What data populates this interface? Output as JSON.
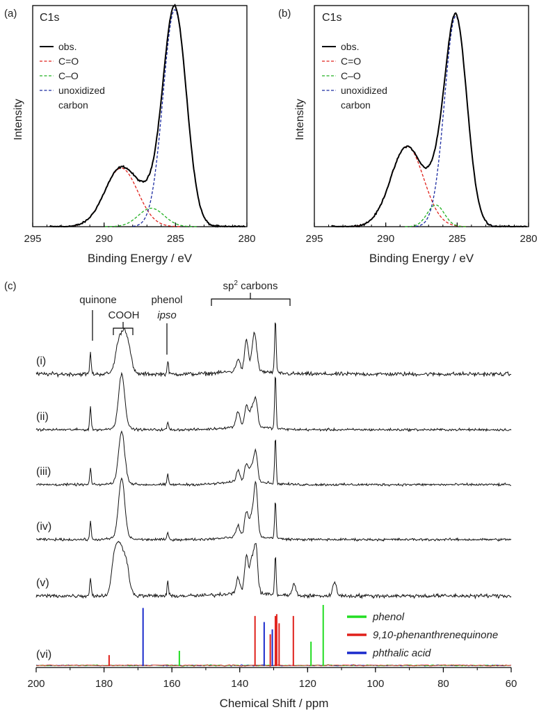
{
  "colors": {
    "obs": "#000000",
    "co_double": "#e0201a",
    "co_single": "#20b020",
    "unox": "#1a2aa0",
    "phenol": "#22dd22",
    "quinone": "#e0201a",
    "phthalic": "#1a2acc"
  },
  "chart_data": [
    {
      "type": "line",
      "panel_label": "(a)",
      "title": "C1s",
      "xlabel": "Binding Energy / eV",
      "ylabel": "Intensity",
      "xlim": [
        295,
        280
      ],
      "xticks": [
        "295",
        "290",
        "285",
        "280"
      ],
      "legend": [
        {
          "label": "obs.",
          "style": "solid"
        },
        {
          "label": "C=O",
          "style": "dashed"
        },
        {
          "label": "C–O",
          "style": "dashed"
        },
        {
          "label": "unoxidized",
          "style": "dashed"
        },
        {
          "label": "carbon",
          "style": "none"
        }
      ],
      "components": [
        {
          "name": "C=O",
          "center": 288.8,
          "height": 0.27,
          "width": 1.15
        },
        {
          "name": "C–O",
          "center": 286.7,
          "height": 0.085,
          "width": 0.9
        },
        {
          "name": "unoxidized carbon",
          "center": 285.05,
          "height": 1.0,
          "width": 0.82
        }
      ]
    },
    {
      "type": "line",
      "panel_label": "(b)",
      "title": "C1s",
      "xlabel": "Binding Energy / eV",
      "ylabel": "Intensity",
      "xlim": [
        295,
        280
      ],
      "xticks": [
        "295",
        "290",
        "285",
        "280"
      ],
      "legend": [
        {
          "label": "obs.",
          "style": "solid"
        },
        {
          "label": "C=O",
          "style": "dashed"
        },
        {
          "label": "C–O",
          "style": "dashed"
        },
        {
          "label": "unoxidized",
          "style": "dashed"
        },
        {
          "label": "carbon",
          "style": "none"
        }
      ],
      "components": [
        {
          "name": "C=O",
          "center": 288.5,
          "height": 0.37,
          "width": 1.15
        },
        {
          "name": "C–O",
          "center": 286.5,
          "height": 0.1,
          "width": 0.6
        },
        {
          "name": "unoxidized carbon",
          "center": 285.1,
          "height": 0.97,
          "width": 0.78
        }
      ]
    },
    {
      "type": "line",
      "panel_label": "(c)",
      "xlabel": "Chemical Shift / ppm",
      "xlim": [
        200,
        60
      ],
      "xticks": [
        "200",
        "180",
        "160",
        "140",
        "120",
        "100",
        "80",
        "60"
      ],
      "annotations": [
        {
          "text": "quinone",
          "ppm": 184
        },
        {
          "text": "COOH",
          "ppm": 174
        },
        {
          "text": "phenol",
          "ppm": 161
        },
        {
          "text": "ipso",
          "ppm": 161
        },
        {
          "text": "sp",
          "ppm": 136
        },
        {
          "text": "2",
          "ppm": 136
        },
        {
          "text": " carbons",
          "ppm": 136
        }
      ],
      "series": [
        {
          "name": "(i)",
          "peaks": [
            [
              184,
              0.38
            ],
            [
              175.8,
              0.45
            ],
            [
              174.2,
              0.55
            ],
            [
              172.8,
              0.4
            ],
            [
              161.2,
              0.22
            ],
            [
              140.5,
              0.22
            ],
            [
              138,
              0.55
            ],
            [
              136,
              0.45
            ],
            [
              135.3,
              0.38
            ],
            [
              129.5,
              1.0
            ]
          ]
        },
        {
          "name": "(ii)",
          "peaks": [
            [
              184,
              0.42
            ],
            [
              174.8,
              0.95
            ],
            [
              161.2,
              0.14
            ],
            [
              140.5,
              0.28
            ],
            [
              138,
              0.38
            ],
            [
              136.5,
              0.3
            ],
            [
              135.3,
              0.5
            ],
            [
              129.5,
              1.0
            ]
          ]
        },
        {
          "name": "(iii)",
          "peaks": [
            [
              184,
              0.3
            ],
            [
              174.8,
              0.9
            ],
            [
              161.2,
              0.18
            ],
            [
              140.5,
              0.2
            ],
            [
              138,
              0.33
            ],
            [
              136.5,
              0.25
            ],
            [
              135.3,
              0.55
            ],
            [
              129.5,
              0.85
            ]
          ]
        },
        {
          "name": "(iv)",
          "peaks": [
            [
              184,
              0.32
            ],
            [
              174.8,
              1.05
            ],
            [
              161.2,
              0.13
            ],
            [
              140.5,
              0.2
            ],
            [
              138,
              0.45
            ],
            [
              136.5,
              0.35
            ],
            [
              135.3,
              0.95
            ],
            [
              129.5,
              0.7
            ]
          ]
        },
        {
          "name": "(v)",
          "peaks": [
            [
              184,
              0.35
            ],
            [
              176.8,
              0.7
            ],
            [
              175.2,
              0.65
            ],
            [
              173.5,
              0.55
            ],
            [
              161.2,
              0.25
            ],
            [
              140.5,
              0.28
            ],
            [
              138,
              0.65
            ],
            [
              136.5,
              0.55
            ],
            [
              135.3,
              0.85
            ],
            [
              129.5,
              0.7
            ],
            [
              124,
              0.2
            ],
            [
              112,
              0.25
            ]
          ]
        }
      ],
      "reference": {
        "name": "(vi)",
        "legend": [
          {
            "label": "phenol",
            "color": "#22dd22"
          },
          {
            "label": "9,10-phenanthrenequinone",
            "color": "#e0201a"
          },
          {
            "label": "phthalic acid",
            "color": "#1a2acc"
          }
        ],
        "lines": [
          {
            "ppm": 178.5,
            "height": 0.18,
            "compound": "9,10-phenanthrenequinone"
          },
          {
            "ppm": 168.5,
            "height": 0.95,
            "compound": "phthalic acid"
          },
          {
            "ppm": 157.8,
            "height": 0.25,
            "compound": "phenol"
          },
          {
            "ppm": 135.5,
            "height": 0.82,
            "compound": "9,10-phenanthrenequinone"
          },
          {
            "ppm": 132.8,
            "height": 0.72,
            "compound": "phthalic acid"
          },
          {
            "ppm": 131.0,
            "height": 0.52,
            "compound": "9,10-phenanthrenequinone"
          },
          {
            "ppm": 130.4,
            "height": 0.6,
            "compound": "phthalic acid"
          },
          {
            "ppm": 129.5,
            "height": 0.82,
            "compound": "9,10-phenanthrenequinone"
          },
          {
            "ppm": 129.1,
            "height": 0.85,
            "compound": "9,10-phenanthrenequinone"
          },
          {
            "ppm": 128.4,
            "height": 0.7,
            "compound": "9,10-phenanthrenequinone"
          },
          {
            "ppm": 124.2,
            "height": 0.82,
            "compound": "9,10-phenanthrenequinone"
          },
          {
            "ppm": 119.0,
            "height": 0.4,
            "compound": "phenol"
          },
          {
            "ppm": 115.4,
            "height": 1.0,
            "compound": "phenol"
          }
        ]
      }
    }
  ]
}
